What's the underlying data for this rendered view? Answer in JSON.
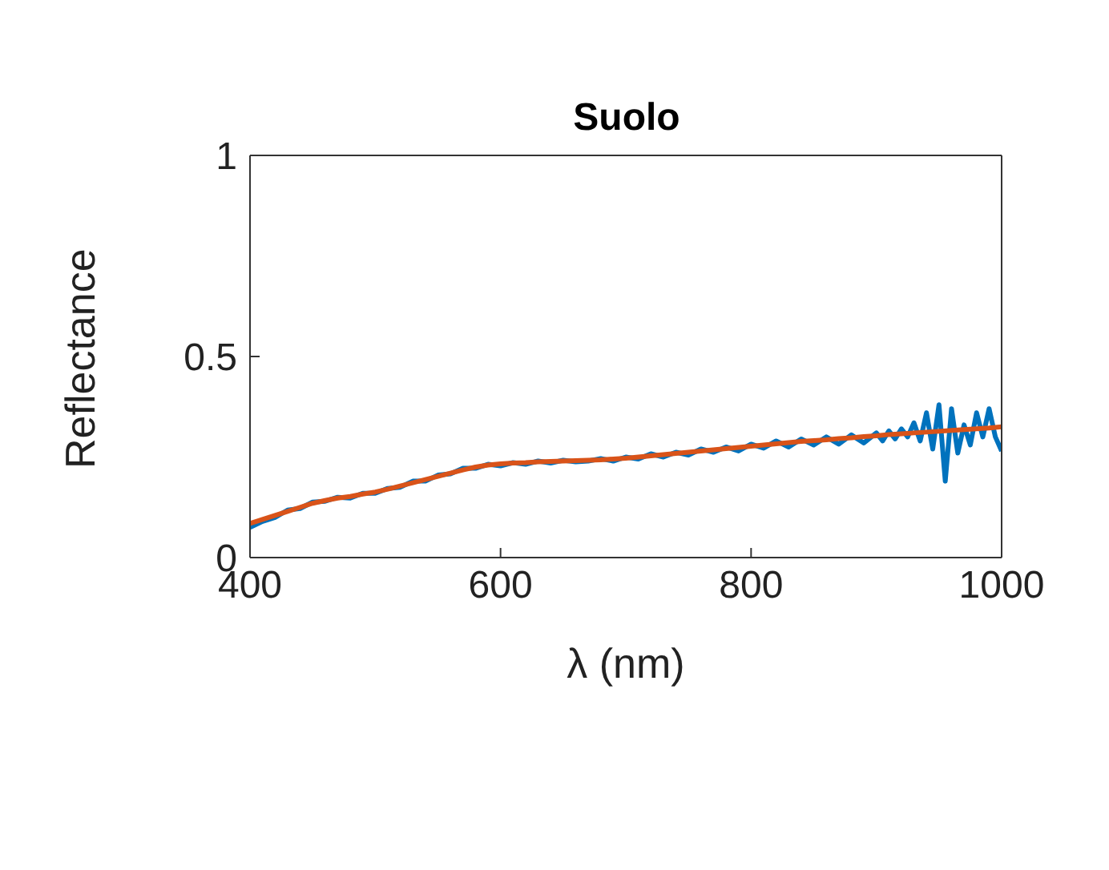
{
  "chart_data": {
    "type": "line",
    "title": "Suolo",
    "xlabel": "λ (nm)",
    "ylabel": "Reflectance",
    "xlim": [
      400,
      1000
    ],
    "xticks": [
      400,
      600,
      800,
      1000
    ],
    "ylim": [
      0,
      1
    ],
    "yticks": [
      0,
      0.5,
      1
    ],
    "legend": false,
    "marker": "none",
    "line_style": "solid",
    "series": [
      {
        "color": "#0072bd",
        "x": [
          400,
          410,
          420,
          430,
          440,
          450,
          460,
          470,
          480,
          490,
          500,
          510,
          520,
          530,
          540,
          550,
          560,
          570,
          580,
          590,
          600,
          610,
          620,
          630,
          640,
          650,
          660,
          670,
          680,
          690,
          700,
          710,
          720,
          730,
          740,
          750,
          760,
          770,
          780,
          790,
          800,
          810,
          820,
          830,
          840,
          850,
          860,
          870,
          880,
          890,
          900,
          905,
          910,
          915,
          920,
          925,
          930,
          935,
          940,
          945,
          950,
          955,
          960,
          965,
          970,
          975,
          980,
          985,
          990,
          995,
          1000
        ],
        "values": [
          0.075,
          0.09,
          0.1,
          0.118,
          0.122,
          0.138,
          0.14,
          0.15,
          0.148,
          0.16,
          0.16,
          0.172,
          0.175,
          0.19,
          0.19,
          0.205,
          0.208,
          0.222,
          0.222,
          0.232,
          0.228,
          0.236,
          0.232,
          0.24,
          0.235,
          0.242,
          0.238,
          0.24,
          0.246,
          0.24,
          0.25,
          0.245,
          0.258,
          0.25,
          0.262,
          0.255,
          0.27,
          0.262,
          0.275,
          0.265,
          0.282,
          0.272,
          0.29,
          0.275,
          0.295,
          0.28,
          0.3,
          0.282,
          0.305,
          0.285,
          0.31,
          0.29,
          0.315,
          0.295,
          0.32,
          0.3,
          0.335,
          0.29,
          0.36,
          0.27,
          0.38,
          0.19,
          0.37,
          0.26,
          0.33,
          0.28,
          0.36,
          0.3,
          0.37,
          0.3,
          0.265
        ]
      },
      {
        "color": "#d95319",
        "x": [
          400,
          410,
          420,
          430,
          440,
          450,
          460,
          470,
          480,
          490,
          500,
          510,
          520,
          530,
          540,
          550,
          560,
          570,
          580,
          590,
          600,
          610,
          620,
          630,
          640,
          650,
          660,
          670,
          680,
          690,
          700,
          710,
          720,
          730,
          740,
          750,
          760,
          770,
          780,
          790,
          800,
          810,
          820,
          830,
          840,
          850,
          860,
          870,
          880,
          890,
          900,
          910,
          920,
          930,
          940,
          950,
          960,
          970,
          980,
          990,
          1000
        ],
        "values": [
          0.085,
          0.095,
          0.105,
          0.115,
          0.125,
          0.135,
          0.142,
          0.148,
          0.152,
          0.158,
          0.163,
          0.17,
          0.178,
          0.186,
          0.194,
          0.202,
          0.21,
          0.218,
          0.225,
          0.23,
          0.233,
          0.235,
          0.236,
          0.238,
          0.239,
          0.24,
          0.241,
          0.242,
          0.243,
          0.245,
          0.247,
          0.25,
          0.253,
          0.256,
          0.259,
          0.262,
          0.265,
          0.268,
          0.271,
          0.274,
          0.277,
          0.28,
          0.283,
          0.286,
          0.289,
          0.291,
          0.293,
          0.296,
          0.298,
          0.301,
          0.303,
          0.306,
          0.308,
          0.31,
          0.312,
          0.314,
          0.316,
          0.318,
          0.32,
          0.322,
          0.325
        ]
      }
    ]
  }
}
